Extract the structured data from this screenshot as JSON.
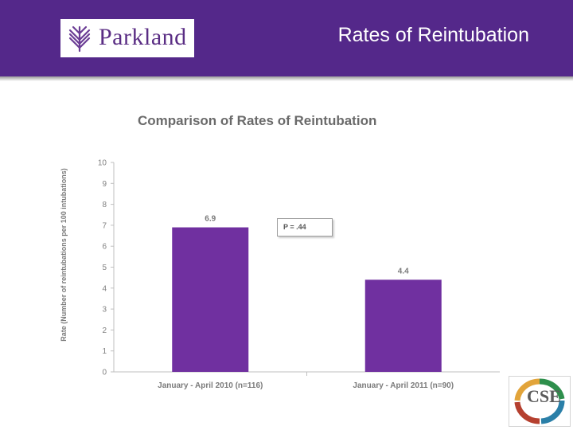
{
  "header": {
    "logo_text": "Parkland",
    "slide_title": "Rates of Reintubation",
    "background_color": "#54288a"
  },
  "annotation": {
    "p_value_text": "P = .44"
  },
  "footer_logo": {
    "text": "CSE"
  },
  "chart_data": {
    "type": "bar",
    "title": "Comparison of Rates of Reintubation",
    "xlabel": "",
    "ylabel": "Rate (Number of reintubations per 100 intubations)",
    "categories": [
      "January - April 2010 (n=116)",
      "January - April 2011 (n=90)"
    ],
    "values": [
      6.9,
      4.4
    ],
    "data_labels": [
      "6.9",
      "4.4"
    ],
    "ylim": [
      0,
      10
    ],
    "yticks": [
      0,
      1,
      2,
      3,
      4,
      5,
      6,
      7,
      8,
      9,
      10
    ],
    "bar_color": "#7030a0",
    "grid": false,
    "legend": "none"
  }
}
